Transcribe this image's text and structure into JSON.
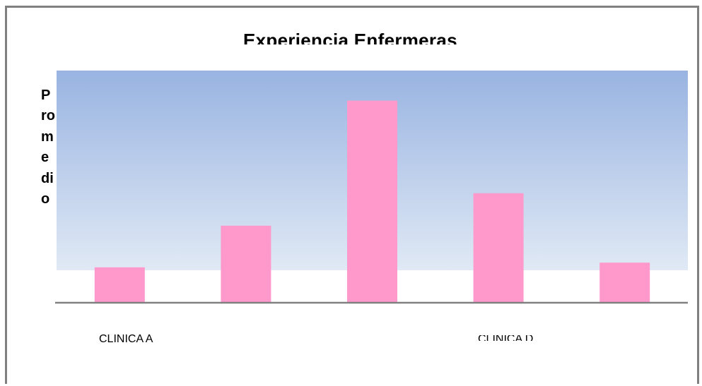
{
  "chart_data": {
    "type": "bar",
    "title": "Experiencia Enfermeras",
    "ylabel": "Promedio",
    "xlabel": "",
    "categories": [
      "CLINICA A",
      "",
      "",
      "CLINICA D",
      ""
    ],
    "values": [
      0.75,
      1.65,
      4.35,
      2.35,
      0.85
    ],
    "ylim": [
      0,
      5
    ],
    "grid": false,
    "legend": "none",
    "colors": {
      "bar": "#ff99cc",
      "plot_top": "#99b4e1",
      "plot_bottom": "#e0e9f5",
      "axis": "#808080"
    }
  }
}
